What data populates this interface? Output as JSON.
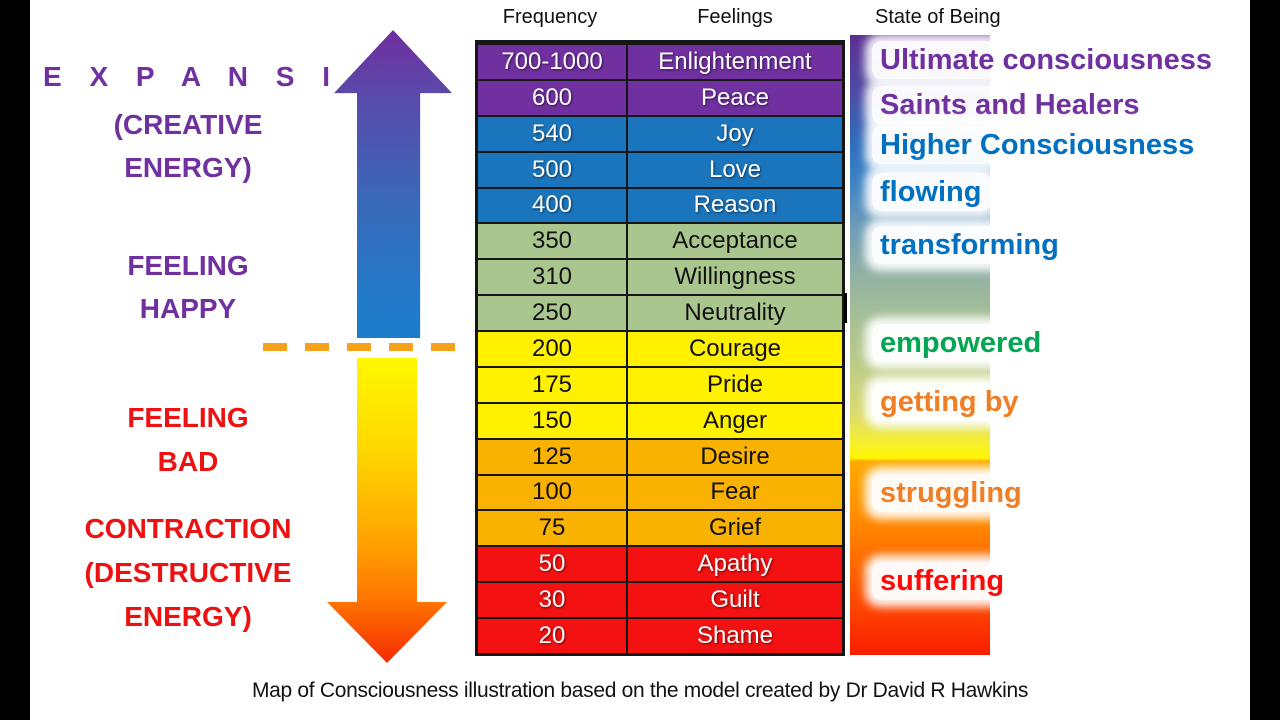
{
  "headers": {
    "frequency": "Frequency",
    "feelings": "Feelings",
    "state_of_being": "State of Being"
  },
  "left_labels": {
    "expansion_title": "E X P A N S I O N",
    "expansion_sub1": "(CREATIVE",
    "expansion_sub2": "ENERGY)",
    "feeling_happy_1": "FEELING",
    "feeling_happy_2": "HAPPY",
    "feeling_bad_1": "FEELING",
    "feeling_bad_2": "BAD",
    "contraction_title": "CONTRACTION",
    "contraction_sub1": "(DESTRUCTIVE",
    "contraction_sub2": "ENERGY)"
  },
  "table": {
    "rows": [
      {
        "frequency": "700-1000",
        "feeling": "Enlightenment",
        "band": "purple"
      },
      {
        "frequency": "600",
        "feeling": "Peace",
        "band": "purple"
      },
      {
        "frequency": "540",
        "feeling": "Joy",
        "band": "blue"
      },
      {
        "frequency": "500",
        "feeling": "Love",
        "band": "blue"
      },
      {
        "frequency": "400",
        "feeling": "Reason",
        "band": "blue"
      },
      {
        "frequency": "350",
        "feeling": "Acceptance",
        "band": "green"
      },
      {
        "frequency": "310",
        "feeling": "Willingness",
        "band": "green"
      },
      {
        "frequency": "250",
        "feeling": "Neutrality",
        "band": "green"
      },
      {
        "frequency": "200",
        "feeling": "Courage",
        "band": "yellow"
      },
      {
        "frequency": "175",
        "feeling": "Pride",
        "band": "yellow"
      },
      {
        "frequency": "150",
        "feeling": "Anger",
        "band": "yellow"
      },
      {
        "frequency": "125",
        "feeling": "Desire",
        "band": "amber"
      },
      {
        "frequency": "100",
        "feeling": "Fear",
        "band": "amber"
      },
      {
        "frequency": "75",
        "feeling": "Grief",
        "band": "amber"
      },
      {
        "frequency": "50",
        "feeling": "Apathy",
        "band": "red"
      },
      {
        "frequency": "30",
        "feeling": "Guilt",
        "band": "red"
      },
      {
        "frequency": "20",
        "feeling": "Shame",
        "band": "red"
      }
    ]
  },
  "states": [
    {
      "label": "Ultimate consciousness",
      "color": "#7030A0"
    },
    {
      "label": "Saints and Healers",
      "color": "#7030A0"
    },
    {
      "label": "Higher Consciousness",
      "color": "#0070C0"
    },
    {
      "label": "flowing",
      "color": "#0070C0"
    },
    {
      "label": "transforming",
      "color": "#0070C0"
    },
    {
      "label": "empowered",
      "color": "#00A651"
    },
    {
      "label": "getting by",
      "color": "#F07E26"
    },
    {
      "label": "struggling",
      "color": "#F07E26"
    },
    {
      "label": "suffering",
      "color": "#FF0808"
    }
  ],
  "colors": {
    "bands": {
      "purple": {
        "bg": "#7030A0",
        "fg": "#FFFFFF",
        "light_text": true
      },
      "blue": {
        "bg": "#1B75BC",
        "fg": "#FFFFFF",
        "light_text": true
      },
      "green": {
        "bg": "#A9C68F",
        "fg": "#111111",
        "light_text": false
      },
      "yellow": {
        "bg": "#FFF100",
        "fg": "#111111",
        "light_text": false
      },
      "amber": {
        "bg": "#F9B200",
        "fg": "#111111",
        "light_text": false
      },
      "red": {
        "bg": "#F31111",
        "fg": "#FFFFFF",
        "light_text": true
      }
    },
    "left_text_expansion": "#7030A0",
    "left_text_contraction": "#ED1111",
    "dashed_line": "#F7A21B"
  },
  "caption": "Map of Consciousness illustration based on the model created by Dr David R Hawkins"
}
